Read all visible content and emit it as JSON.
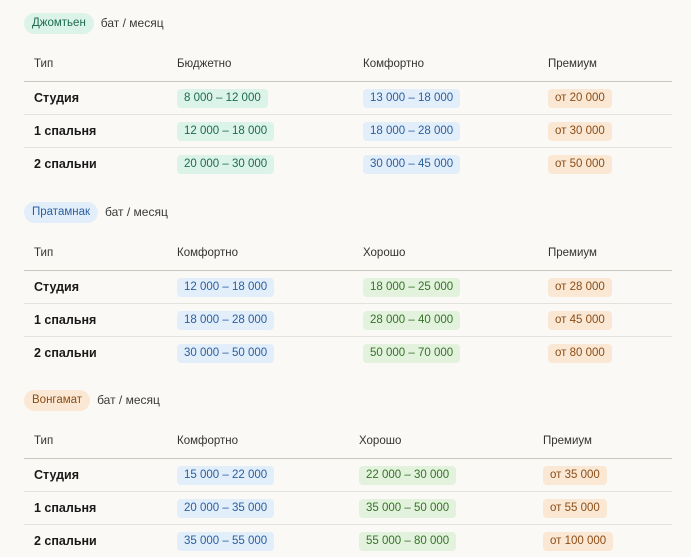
{
  "sections": [
    {
      "badge": "Джомтьен",
      "badge_color": "teal",
      "unit": "бат / месяц",
      "headers": [
        "Тип",
        "Бюджетно",
        "Комфортно",
        "Премиум"
      ],
      "header_colors": [
        "teal",
        "blue",
        "orange"
      ],
      "rows": [
        {
          "type": "Студия",
          "c1": "8 000 – 12 000",
          "c2": "13 000 – 18 000",
          "c3": "от 20 000"
        },
        {
          "type": "1 спальня",
          "c1": "12 000 – 18 000",
          "c2": "18 000 – 28 000",
          "c3": "от 30 000"
        },
        {
          "type": "2 спальни",
          "c1": "20 000 – 30 000",
          "c2": "30 000 – 45 000",
          "c3": "от 50 000"
        }
      ]
    },
    {
      "badge": "Пратамнак",
      "badge_color": "blue",
      "unit": "бат / месяц",
      "headers": [
        "Тип",
        "Комфортно",
        "Хорошо",
        "Премиум"
      ],
      "header_colors": [
        "blue",
        "green",
        "orange"
      ],
      "rows": [
        {
          "type": "Студия",
          "c1": "12 000 – 18 000",
          "c2": "18 000 – 25 000",
          "c3": "от 28 000"
        },
        {
          "type": "1 спальня",
          "c1": "18 000 – 28 000",
          "c2": "28 000 – 40 000",
          "c3": "от 45 000"
        },
        {
          "type": "2 спальни",
          "c1": "30 000 – 50 000",
          "c2": "50 000 – 70 000",
          "c3": "от 80 000"
        }
      ]
    },
    {
      "badge": "Вонгамат",
      "badge_color": "orange",
      "unit": "бат / месяц",
      "headers": [
        "Тип",
        "Комфортно",
        "Хорошо",
        "Премиум"
      ],
      "header_colors": [
        "blue",
        "green",
        "orange"
      ],
      "rows": [
        {
          "type": "Студия",
          "c1": "15 000 – 22 000",
          "c2": "22 000 – 30 000",
          "c3": "от 35 000"
        },
        {
          "type": "1 спальня",
          "c1": "20 000 – 35 000",
          "c2": "35 000 – 50 000",
          "c3": "от 55 000"
        },
        {
          "type": "2 спальни",
          "c1": "35 000 – 55 000",
          "c2": "55 000 – 80 000",
          "c3": "от 100 000"
        }
      ]
    }
  ],
  "colors": {
    "teal": "#dcf3ea",
    "blue": "#e3eefb",
    "green": "#e2f2dc",
    "orange": "#fbe8d4"
  }
}
